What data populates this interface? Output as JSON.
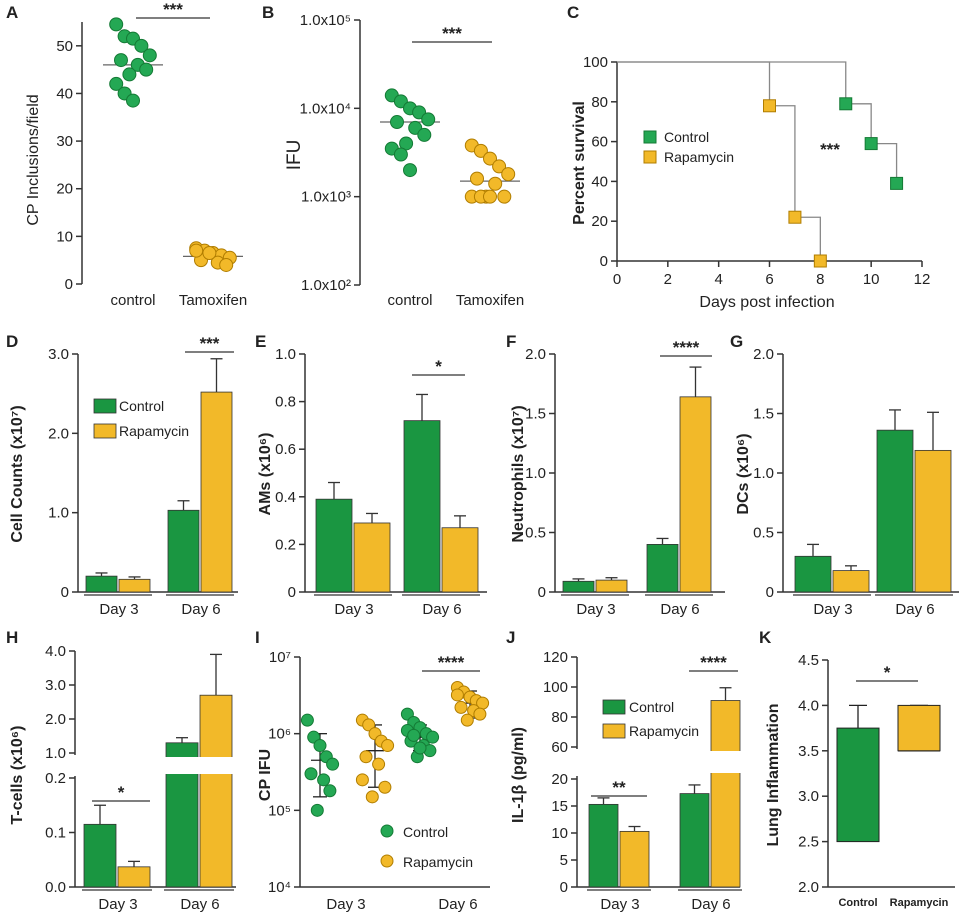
{
  "colors": {
    "green": "#1a9641",
    "green_dot": "#24a854",
    "orange": "#f2b929",
    "axis": "#333333",
    "dot_edge": "#b07d00"
  },
  "panels": {
    "A": {
      "label": "A",
      "ylabel": "CP Inclusions/field",
      "yticks": [
        "0",
        "10",
        "20",
        "30",
        "40",
        "50"
      ],
      "categories": [
        "control",
        "Tamoxifen"
      ],
      "sig": "***"
    },
    "B": {
      "label": "B",
      "ylabel": "IFU",
      "yticks": [
        "1.0x10²",
        "1.0x10³",
        "1.0x10⁴",
        "1.0x10⁵"
      ],
      "categories": [
        "control",
        "Tamoxifen"
      ],
      "sig": "***"
    },
    "C": {
      "label": "C",
      "ylabel": "Percent survival",
      "xlabel": "Days post infection",
      "yticks": [
        "0",
        "20",
        "40",
        "60",
        "80",
        "100"
      ],
      "xticks": [
        "0",
        "2",
        "4",
        "6",
        "8",
        "10",
        "12"
      ],
      "legend": [
        "Control",
        "Rapamycin"
      ],
      "sig": "***"
    },
    "D": {
      "label": "D",
      "ylabel": "Cell Counts (x10⁷)",
      "yticks": [
        "0",
        "1.0",
        "2.0",
        "3.0"
      ],
      "categories": [
        "Day 3",
        "Day 6"
      ],
      "legend": [
        "Control",
        "Rapamycin"
      ],
      "sig": "***"
    },
    "E": {
      "label": "E",
      "ylabel": "AMs (x10⁶)",
      "yticks": [
        "0",
        "0.2",
        "0.4",
        "0.6",
        "0.8",
        "1.0"
      ],
      "categories": [
        "Day 3",
        "Day 6"
      ],
      "sig": "*"
    },
    "F": {
      "label": "F",
      "ylabel": "Neutrophils (x10⁷)",
      "yticks": [
        "0",
        "0.5",
        "1.0",
        "1.5",
        "2.0"
      ],
      "categories": [
        "Day 3",
        "Day 6"
      ],
      "sig": "****"
    },
    "G": {
      "label": "G",
      "ylabel": "DCs (x10⁶)",
      "yticks": [
        "0",
        "0.5",
        "1.0",
        "1.5",
        "2.0"
      ],
      "categories": [
        "Day 3",
        "Day 6"
      ]
    },
    "H": {
      "label": "H",
      "ylabel": "T-cells (x10⁶)",
      "yticks_upper": [
        "1.0",
        "2.0",
        "3.0",
        "4.0"
      ],
      "yticks_lower": [
        "0.0",
        "0.1",
        "0.2"
      ],
      "categories": [
        "Day 3",
        "Day 6"
      ],
      "sig": "*"
    },
    "I": {
      "label": "I",
      "ylabel": "CP IFU",
      "yticks": [
        "10⁴",
        "10⁵",
        "10⁶",
        "10⁷"
      ],
      "categories": [
        "Day 3",
        "Day 6"
      ],
      "legend": [
        "Control",
        "Rapamycin"
      ],
      "sig": "****"
    },
    "J": {
      "label": "J",
      "ylabel": "IL-1β (pg/ml)",
      "yticks_upper": [
        "60",
        "80",
        "100",
        "120"
      ],
      "yticks_lower": [
        "0",
        "5",
        "10",
        "15",
        "20"
      ],
      "categories": [
        "Day 3",
        "Day 6"
      ],
      "legend": [
        "Control",
        "Rapamycin"
      ],
      "sig1": "**",
      "sig2": "****"
    },
    "K": {
      "label": "K",
      "ylabel": "Lung Inflammation",
      "yticks": [
        "2.0",
        "2.5",
        "3.0",
        "3.5",
        "4.0",
        "4.5"
      ],
      "categories": [
        "Control",
        "Rapamycin"
      ],
      "sig": "*"
    }
  },
  "chart_data": [
    {
      "panel": "A",
      "type": "scatter",
      "series": [
        {
          "name": "control",
          "values": [
            54.5,
            52,
            51.5,
            50,
            48,
            47,
            46,
            45,
            44,
            42,
            40,
            38.5
          ],
          "mean": 46
        },
        {
          "name": "Tamoxifen",
          "values": [
            7.5,
            7,
            6.5,
            6,
            5.5,
            5,
            4.5,
            4,
            6.5,
            7
          ],
          "mean": 5.8
        }
      ],
      "ylim": [
        0,
        55
      ]
    },
    {
      "panel": "B",
      "type": "scatter",
      "log": true,
      "series": [
        {
          "name": "control",
          "values": [
            14000,
            12000,
            10000,
            9000,
            7500,
            7000,
            6000,
            5000,
            4000,
            3500,
            3000,
            2000
          ],
          "mean": 7000
        },
        {
          "name": "Tamoxifen",
          "values": [
            3800,
            3300,
            2700,
            2200,
            1800,
            1600,
            1400,
            1000,
            1000,
            1000,
            1000,
            1000
          ],
          "mean": 1500
        }
      ],
      "ylim": [
        100,
        100000
      ]
    },
    {
      "panel": "C",
      "type": "line",
      "x_label": "Days post infection",
      "series": [
        {
          "name": "Control",
          "points": [
            [
              0,
              100
            ],
            [
              9,
              100
            ],
            [
              9,
              79
            ],
            [
              10,
              79
            ],
            [
              10,
              59
            ],
            [
              11,
              59
            ],
            [
              11,
              39
            ]
          ],
          "markers": [
            [
              9,
              79
            ],
            [
              10,
              59
            ],
            [
              11,
              39
            ]
          ]
        },
        {
          "name": "Rapamycin",
          "points": [
            [
              0,
              100
            ],
            [
              6,
              100
            ],
            [
              6,
              78
            ],
            [
              7,
              78
            ],
            [
              7,
              22
            ],
            [
              8,
              22
            ],
            [
              8,
              0
            ]
          ],
          "markers": [
            [
              6,
              78
            ],
            [
              7,
              22
            ],
            [
              8,
              0
            ]
          ]
        }
      ],
      "xlim": [
        0,
        12
      ],
      "ylim": [
        0,
        100
      ]
    },
    {
      "panel": "D",
      "type": "bar",
      "categories": [
        "Day 3",
        "Day 6"
      ],
      "series": [
        {
          "name": "Control",
          "values": [
            0.2,
            1.03
          ],
          "errors": [
            0.04,
            0.12
          ]
        },
        {
          "name": "Rapamycin",
          "values": [
            0.16,
            2.52
          ],
          "errors": [
            0.03,
            0.42
          ]
        }
      ],
      "ylim": [
        0,
        3.0
      ]
    },
    {
      "panel": "E",
      "type": "bar",
      "categories": [
        "Day 3",
        "Day 6"
      ],
      "series": [
        {
          "name": "Control",
          "values": [
            0.39,
            0.72
          ],
          "errors": [
            0.07,
            0.11
          ]
        },
        {
          "name": "Rapamycin",
          "values": [
            0.29,
            0.27
          ],
          "errors": [
            0.04,
            0.05
          ]
        }
      ],
      "ylim": [
        0,
        1.0
      ]
    },
    {
      "panel": "F",
      "type": "bar",
      "categories": [
        "Day 3",
        "Day 6"
      ],
      "series": [
        {
          "name": "Control",
          "values": [
            0.09,
            0.4
          ],
          "errors": [
            0.02,
            0.05
          ]
        },
        {
          "name": "Rapamycin",
          "values": [
            0.1,
            1.64
          ],
          "errors": [
            0.02,
            0.25
          ]
        }
      ],
      "ylim": [
        0,
        2.0
      ]
    },
    {
      "panel": "G",
      "type": "bar",
      "categories": [
        "Day 3",
        "Day 6"
      ],
      "series": [
        {
          "name": "Control",
          "values": [
            0.3,
            1.36
          ],
          "errors": [
            0.1,
            0.17
          ]
        },
        {
          "name": "Rapamycin",
          "values": [
            0.18,
            1.19
          ],
          "errors": [
            0.04,
            0.32
          ]
        }
      ],
      "ylim": [
        0,
        2.0
      ]
    },
    {
      "panel": "H",
      "type": "bar",
      "broken_axis": true,
      "categories": [
        "Day 3",
        "Day 6"
      ],
      "series": [
        {
          "name": "Control",
          "values": [
            0.115,
            1.3
          ],
          "errors": [
            0.035,
            0.15
          ]
        },
        {
          "name": "Rapamycin",
          "values": [
            0.037,
            2.7
          ],
          "errors": [
            0.01,
            1.2
          ]
        }
      ]
    },
    {
      "panel": "I",
      "type": "scatter",
      "log": true,
      "categories": [
        "Day 3",
        "Day 6"
      ],
      "series": [
        {
          "name": "Control",
          "day3": [
            1500000,
            900000,
            700000,
            500000,
            400000,
            300000,
            250000,
            180000,
            100000
          ],
          "day6": [
            1800000,
            1400000,
            1200000,
            1000000,
            900000,
            800000,
            700000,
            600000,
            500000,
            1100000,
            950000,
            650000
          ],
          "center": [
            450000,
            900000
          ],
          "err_low": [
            150000,
            600000
          ],
          "err_high": [
            1000000,
            1300000
          ]
        },
        {
          "name": "Rapamycin",
          "day3": [
            1500000,
            1300000,
            1000000,
            800000,
            700000,
            500000,
            400000,
            200000,
            150000,
            250000
          ],
          "day6": [
            4000000,
            3500000,
            3000000,
            2700000,
            2500000,
            2200000,
            2000000,
            1800000,
            1500000,
            3200000
          ],
          "center": [
            600000,
            2500000
          ],
          "err_low": [
            200000,
            1600000
          ],
          "err_high": [
            1300000,
            3600000
          ]
        }
      ],
      "ylim": [
        10000,
        10000000
      ]
    },
    {
      "panel": "J",
      "type": "bar",
      "broken_axis": true,
      "categories": [
        "Day 3",
        "Day 6"
      ],
      "series": [
        {
          "name": "Control",
          "values": [
            15.3,
            17.3
          ],
          "errors": [
            1.2,
            1.6
          ]
        },
        {
          "name": "Rapamycin",
          "values": [
            10.3,
            91
          ],
          "errors": [
            0.9,
            8.5
          ]
        }
      ]
    },
    {
      "panel": "K",
      "type": "boxplot",
      "categories": [
        "Control",
        "Rapamycin"
      ],
      "series": [
        {
          "name": "Control",
          "min": 2.5,
          "q1": 2.5,
          "median": 3.5,
          "q3": 3.75,
          "max": 4.0
        },
        {
          "name": "Rapamycin",
          "min": 3.5,
          "q1": 3.5,
          "median": 3.5,
          "q3": 4.0,
          "max": 4.0
        }
      ],
      "ylim": [
        2.0,
        4.5
      ]
    }
  ]
}
